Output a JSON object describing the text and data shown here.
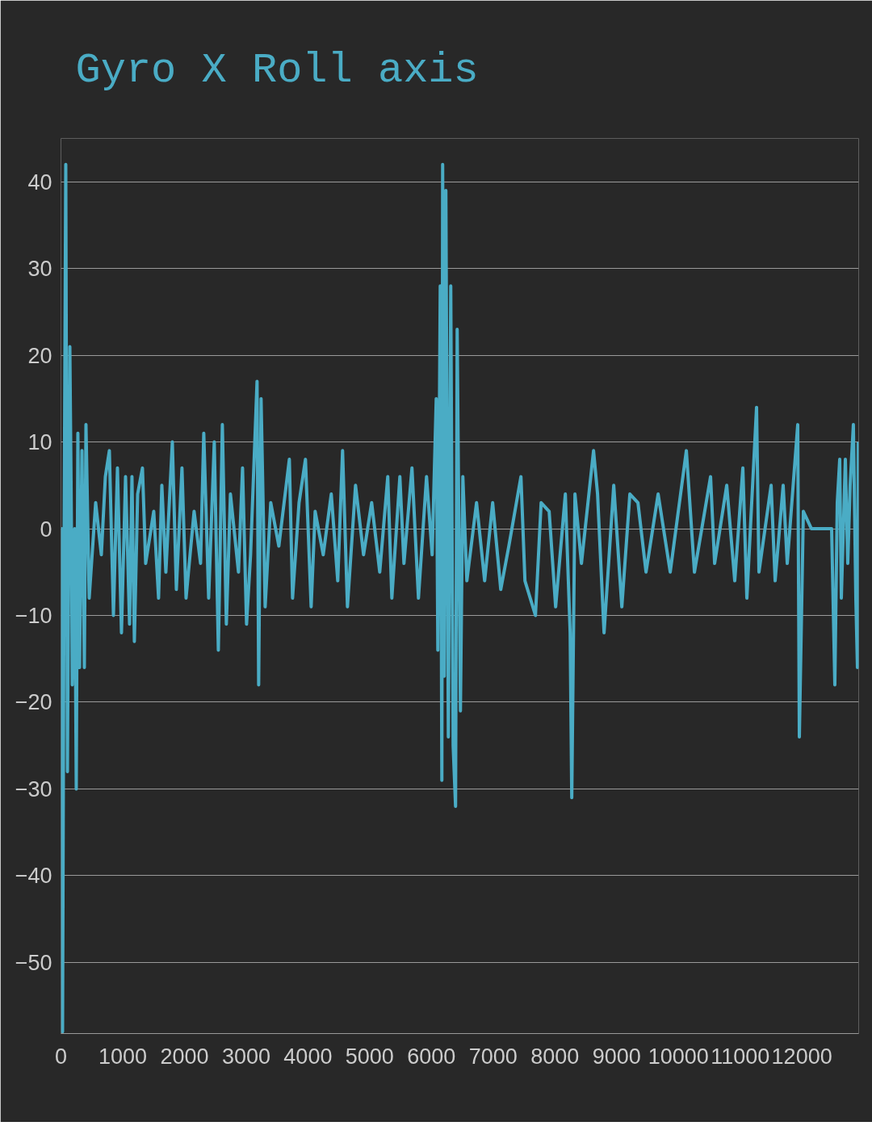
{
  "chart_data": {
    "type": "line",
    "title": "Gyro X Roll axis",
    "x": [
      0,
      13,
      26,
      52,
      78,
      105,
      144,
      170,
      183,
      222,
      248,
      274,
      301,
      340,
      379,
      405,
      457,
      562,
      654,
      719,
      784,
      850,
      915,
      980,
      1046,
      1111,
      1150,
      1189,
      1242,
      1320,
      1372,
      1503,
      1581,
      1634,
      1699,
      1804,
      1869,
      1960,
      2026,
      2156,
      2261,
      2313,
      2392,
      2483,
      2549,
      2614,
      2679,
      2745,
      2875,
      2941,
      3006,
      3071,
      3176,
      3202,
      3241,
      3307,
      3398,
      3529,
      3699,
      3751,
      3856,
      3960,
      4052,
      4117,
      4248,
      4378,
      4483,
      4561,
      4640,
      4771,
      4901,
      5032,
      5163,
      5293,
      5359,
      5489,
      5555,
      5685,
      5790,
      5921,
      6012,
      6078,
      6104,
      6143,
      6169,
      6182,
      6208,
      6234,
      6274,
      6313,
      6352,
      6391,
      6417,
      6470,
      6509,
      6574,
      6731,
      6862,
      6992,
      7123,
      7254,
      7450,
      7515,
      7685,
      7777,
      7907,
      8012,
      8169,
      8247,
      8273,
      8325,
      8430,
      8626,
      8691,
      8796,
      8953,
      9084,
      9214,
      9345,
      9476,
      9672,
      9868,
      10129,
      10260,
      10521,
      10587,
      10783,
      10913,
      11044,
      11109,
      11266,
      11305,
      11502,
      11567,
      11697,
      11763,
      11933,
      11959,
      12024,
      12155,
      12482,
      12534,
      12573,
      12613,
      12639,
      12704,
      12743,
      12782,
      12834,
      12874,
      12900,
      12913
    ],
    "series": [
      {
        "color": "#4aacc5",
        "values": [
          0,
          null,
          -58,
          null,
          42,
          -28,
          21,
          null,
          -18,
          null,
          -30,
          11,
          -16,
          9,
          -16,
          12,
          -8,
          3,
          -3,
          6,
          9,
          -10,
          7,
          -12,
          6,
          -11,
          6,
          -13,
          4,
          7,
          -4,
          2,
          -8,
          5,
          -5,
          10,
          -7,
          7,
          -8,
          2,
          -4,
          11,
          -8,
          10,
          -14,
          12,
          -11,
          4,
          -5,
          7,
          -11,
          -3,
          17,
          -18,
          15,
          -9,
          3,
          -2,
          8,
          -8,
          3,
          8,
          -9,
          2,
          -3,
          4,
          -6,
          9,
          -9,
          5,
          -3,
          3,
          -5,
          6,
          -8,
          6,
          -4,
          7,
          -8,
          6,
          -3,
          15,
          -14,
          28,
          -29,
          42,
          -17,
          39,
          -24,
          28,
          -25,
          -32,
          23,
          -21,
          6,
          -6,
          3,
          -6,
          3,
          -7,
          -2,
          6,
          -6,
          -10,
          3,
          2,
          -9,
          4,
          -12,
          -31,
          4,
          -4,
          9,
          4,
          -12,
          5,
          -9,
          4,
          3,
          -5,
          4,
          -5,
          9,
          -5,
          6,
          -4,
          5,
          -6,
          7,
          -8,
          14,
          -5,
          5,
          -6,
          5,
          -4,
          12,
          -24,
          2,
          0,
          0,
          -18,
          3,
          8,
          -8,
          8,
          -4,
          5,
          12,
          -8,
          -16,
          10
        ]
      }
    ],
    "xlim": [
      0,
      12920
    ],
    "ylim": [
      -58.2,
      45
    ],
    "xticks": [
      0,
      1000,
      2000,
      3000,
      4000,
      5000,
      6000,
      7000,
      8000,
      9000,
      10000,
      11000,
      12000
    ],
    "yticks": [
      -50,
      -40,
      -30,
      -20,
      -10,
      0,
      10,
      20,
      30,
      40
    ],
    "grid": "y",
    "line_style": "solid"
  }
}
